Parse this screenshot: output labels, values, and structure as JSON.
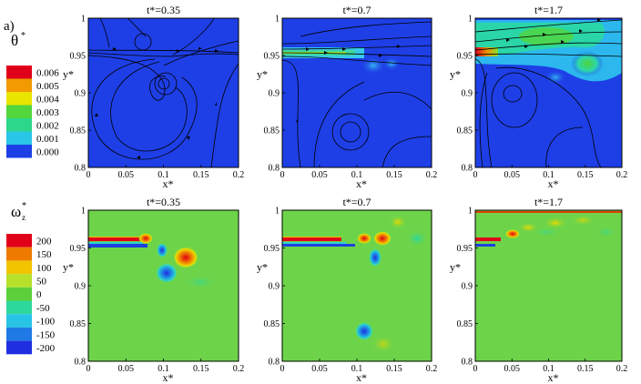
{
  "figure": {
    "label": "a)"
  },
  "colors": {
    "theta_bg": "#1e3fe6",
    "omega_bg": "#6dd44a",
    "frame": "#000000"
  },
  "legend_theta": {
    "symbol": "θ",
    "superscript": "*",
    "values": [
      "0.006",
      "0.005",
      "0.004",
      "0.003",
      "0.002",
      "0.001",
      "0.000"
    ],
    "colors": [
      "#e0001a",
      "#f39a00",
      "#e9e400",
      "#52d63c",
      "#2cd68a",
      "#29c6e8",
      "#1e3fe6"
    ]
  },
  "legend_omega": {
    "symbol": "ω",
    "subscript": "z",
    "superscript": "*",
    "values": [
      "200",
      "150",
      "100",
      "50",
      "0",
      "-50",
      "-100",
      "-150",
      "-200"
    ],
    "colors": [
      "#e0001a",
      "#ef7a00",
      "#f2c400",
      "#b7e02a",
      "#5ccf3a",
      "#2cd89a",
      "#27c4e6",
      "#1f7ae6",
      "#1f2fe0"
    ]
  },
  "chart_data": [
    {
      "type": "heatmap",
      "field": "theta*",
      "title": "t*=0.35",
      "xlabel": "x*",
      "ylabel": "y*",
      "xlim": [
        0,
        0.2
      ],
      "ylim": [
        0.8,
        1
      ],
      "x_ticks": [
        "0",
        "0.05",
        "0.1",
        "0.15",
        "0.2"
      ],
      "y_ticks": [
        "0.8",
        "0.85",
        "0.9",
        "0.95",
        "1"
      ]
    },
    {
      "type": "heatmap",
      "field": "theta*",
      "title": "t*=0.7",
      "xlabel": "x*",
      "ylabel": "y*",
      "xlim": [
        0,
        0.2
      ],
      "ylim": [
        0.8,
        1
      ],
      "x_ticks": [
        "0",
        "0.05",
        "0.1",
        "0.15",
        "0.2"
      ],
      "y_ticks": [
        "0.8",
        "0.85",
        "0.9",
        "0.95",
        "1"
      ]
    },
    {
      "type": "heatmap",
      "field": "theta*",
      "title": "t*=1.7",
      "xlabel": "x*",
      "ylabel": "y*",
      "xlim": [
        0,
        0.2
      ],
      "ylim": [
        0.8,
        1
      ],
      "x_ticks": [
        "0",
        "0.05",
        "0.1",
        "0.15",
        "0.2"
      ],
      "y_ticks": [
        "0.8",
        "0.85",
        "0.9",
        "0.95",
        "1"
      ]
    },
    {
      "type": "heatmap",
      "field": "omega_z*",
      "title": "t*=0.35",
      "xlabel": "x*",
      "ylabel": "y*",
      "xlim": [
        0,
        0.2
      ],
      "ylim": [
        0.8,
        1
      ],
      "x_ticks": [
        "0",
        "0.05",
        "0.1",
        "0.15",
        "0.2"
      ],
      "y_ticks": [
        "0.8",
        "0.85",
        "0.9",
        "0.95",
        "1"
      ]
    },
    {
      "type": "heatmap",
      "field": "omega_z*",
      "title": "t*=0.7",
      "xlabel": "x*",
      "ylabel": "y*",
      "xlim": [
        0,
        0.2
      ],
      "ylim": [
        0.8,
        1
      ],
      "x_ticks": [
        "0",
        "0.05",
        "0.1",
        "0.15",
        "0.2"
      ],
      "y_ticks": [
        "0.8",
        "0.85",
        "0.9",
        "0.95",
        "1"
      ]
    },
    {
      "type": "heatmap",
      "field": "omega_z*",
      "title": "t*=1.7",
      "xlabel": "x*",
      "ylabel": "y*",
      "xlim": [
        0,
        0.2
      ],
      "ylim": [
        0.8,
        1
      ],
      "x_ticks": [
        "0",
        "0.05",
        "0.1",
        "0.15",
        "0.2"
      ],
      "y_ticks": [
        "0.8",
        "0.85",
        "0.9",
        "0.95",
        "1"
      ]
    }
  ]
}
